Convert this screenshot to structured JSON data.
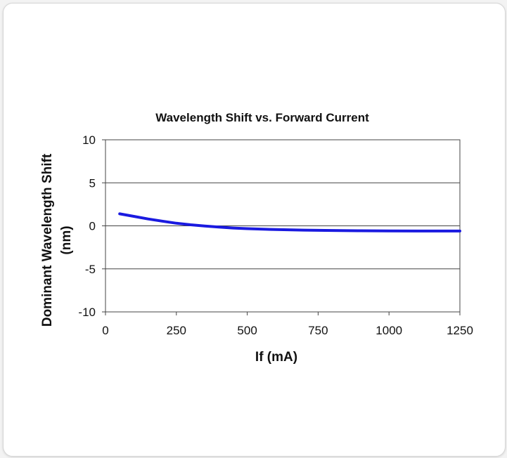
{
  "chart_data": {
    "type": "line",
    "title": "Wavelength Shift vs. Forward Current",
    "xlabel": "If (mA)",
    "ylabel_line1": "Dominant Wavelength Shift",
    "ylabel_line2": "(nm)",
    "xlim": [
      0,
      1250
    ],
    "ylim": [
      -10,
      10
    ],
    "xticks": [
      0,
      250,
      500,
      750,
      1000,
      1250
    ],
    "yticks": [
      10,
      5,
      0,
      -5,
      -10
    ],
    "grid": "horizontal",
    "legend": "none",
    "series": [
      {
        "color": "#1a1ae0",
        "x": [
          50,
          100,
          150,
          200,
          250,
          300,
          350,
          400,
          450,
          500,
          600,
          700,
          800,
          900,
          1000,
          1100,
          1250
        ],
        "y": [
          1.4,
          1.1,
          0.8,
          0.55,
          0.3,
          0.12,
          -0.02,
          -0.15,
          -0.25,
          -0.33,
          -0.43,
          -0.5,
          -0.54,
          -0.57,
          -0.59,
          -0.6,
          -0.6
        ]
      }
    ]
  }
}
